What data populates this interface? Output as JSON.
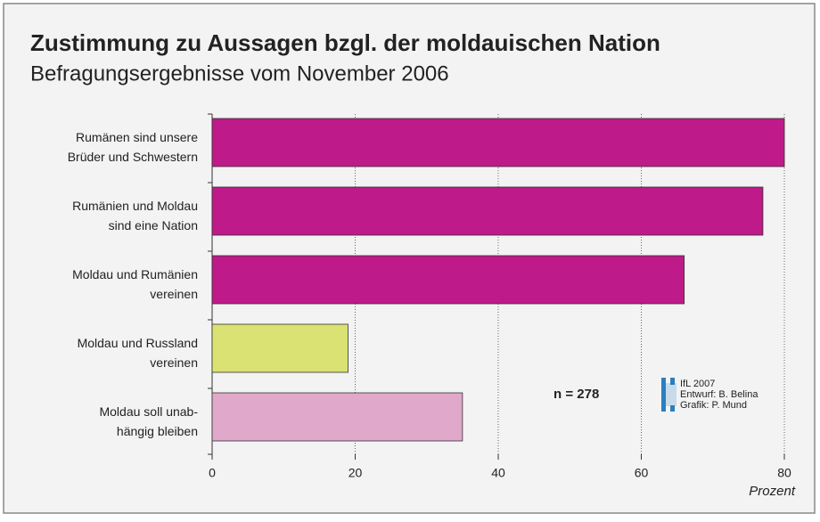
{
  "chart_data": {
    "type": "bar",
    "orientation": "horizontal",
    "title": "Zustimmung zu Aussagen bzgl. der moldauischen Nation",
    "subtitle": "Befragungsergebnisse vom November 2006",
    "categories": [
      [
        "Rumänen sind unsere",
        "Brüder und Schwestern"
      ],
      [
        "Rumänien und Moldau",
        "sind eine Nation"
      ],
      [
        "Moldau und Rumänien",
        "vereinen"
      ],
      [
        "Moldau und Russland",
        "vereinen"
      ],
      [
        "Moldau soll unab-",
        "hängig bleiben"
      ]
    ],
    "values": [
      80,
      77,
      66,
      19,
      35
    ],
    "colors": [
      "#be1a8a",
      "#be1a8a",
      "#be1a8a",
      "#d9e272",
      "#e0a8cb"
    ],
    "xlim": [
      0,
      80
    ],
    "xticks": [
      0,
      20,
      40,
      60,
      80
    ],
    "grid": true,
    "xlabel": "Prozent",
    "annotations": [
      "n = 278"
    ],
    "credits": [
      "IfL 2007",
      "Entwurf: B. Belina",
      "Grafik: P. Mund"
    ]
  }
}
